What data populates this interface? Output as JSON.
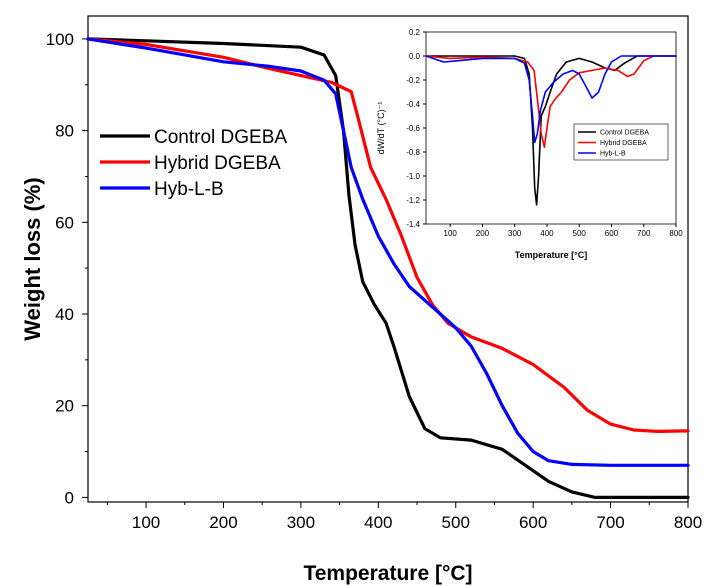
{
  "chart_data": [
    {
      "type": "line",
      "xlabel": "Temperature [°C]",
      "ylabel": "Weight loss (%)",
      "xlim": [
        25,
        800
      ],
      "ylim": [
        -1,
        105
      ],
      "xticks": [
        100,
        200,
        300,
        400,
        500,
        600,
        700,
        800
      ],
      "yticks": [
        0,
        20,
        40,
        60,
        80,
        100
      ],
      "grid": false,
      "legend_position": "center-left",
      "series": [
        {
          "name": "Control DGEBA",
          "color": "#000000",
          "points": [
            [
              25,
              100
            ],
            [
              100,
              99.6
            ],
            [
              200,
              99
            ],
            [
              300,
              98.2
            ],
            [
              330,
              96.5
            ],
            [
              345,
              92
            ],
            [
              355,
              80
            ],
            [
              362,
              66
            ],
            [
              370,
              55
            ],
            [
              380,
              47
            ],
            [
              395,
              42
            ],
            [
              410,
              38
            ],
            [
              420,
              33
            ],
            [
              440,
              22
            ],
            [
              460,
              15
            ],
            [
              480,
              13
            ],
            [
              520,
              12.5
            ],
            [
              560,
              10.5
            ],
            [
              590,
              7
            ],
            [
              620,
              3.5
            ],
            [
              650,
              1.2
            ],
            [
              680,
              0
            ],
            [
              800,
              0
            ]
          ]
        },
        {
          "name": "Hybrid DGEBA",
          "color": "#ff0000",
          "points": [
            [
              25,
              100
            ],
            [
              100,
              98.8
            ],
            [
              200,
              96
            ],
            [
              260,
              93.5
            ],
            [
              300,
              92
            ],
            [
              340,
              90.5
            ],
            [
              365,
              88.5
            ],
            [
              375,
              82
            ],
            [
              390,
              72
            ],
            [
              410,
              65
            ],
            [
              430,
              57
            ],
            [
              450,
              48
            ],
            [
              470,
              42
            ],
            [
              490,
              38
            ],
            [
              520,
              35
            ],
            [
              560,
              32.5
            ],
            [
              600,
              29
            ],
            [
              640,
              24
            ],
            [
              670,
              19
            ],
            [
              700,
              16
            ],
            [
              730,
              14.7
            ],
            [
              760,
              14.4
            ],
            [
              800,
              14.5
            ]
          ]
        },
        {
          "name": "Hyb-L-B",
          "color": "#0000ff",
          "points": [
            [
              25,
              100
            ],
            [
              100,
              98
            ],
            [
              200,
              95
            ],
            [
              260,
              94
            ],
            [
              300,
              93
            ],
            [
              330,
              91
            ],
            [
              345,
              88
            ],
            [
              355,
              80
            ],
            [
              365,
              72
            ],
            [
              380,
              65
            ],
            [
              400,
              57
            ],
            [
              420,
              51
            ],
            [
              440,
              46
            ],
            [
              460,
              43
            ],
            [
              480,
              40
            ],
            [
              500,
              37
            ],
            [
              520,
              33
            ],
            [
              540,
              27
            ],
            [
              560,
              20
            ],
            [
              580,
              14
            ],
            [
              600,
              10
            ],
            [
              620,
              8
            ],
            [
              650,
              7.2
            ],
            [
              700,
              7
            ],
            [
              800,
              7
            ]
          ]
        }
      ]
    },
    {
      "type": "line",
      "xlabel": "Temperature [°C]",
      "ylabel": "dW/dT (°C)⁻¹",
      "xlim": [
        25,
        800
      ],
      "ylim": [
        -1.4,
        0.2
      ],
      "xticks": [
        100,
        200,
        300,
        400,
        500,
        600,
        700,
        800
      ],
      "yticks": [
        0.2,
        0.0,
        -0.2,
        -0.4,
        -0.6,
        -0.8,
        -1.0,
        -1.2,
        -1.4
      ],
      "tick_labels_y": [
        "0.2",
        "0.0",
        "-0.2",
        "-0.4",
        "-0.6",
        "-0.8",
        "-1.0",
        "-1.2",
        "-1.4"
      ],
      "grid": false,
      "legend_position": "lower-right",
      "series": [
        {
          "name": "Control DGEBA",
          "color": "#000000",
          "points": [
            [
              25,
              0
            ],
            [
              300,
              0
            ],
            [
              330,
              -0.02
            ],
            [
              345,
              -0.15
            ],
            [
              355,
              -0.6
            ],
            [
              362,
              -1.1
            ],
            [
              368,
              -1.24
            ],
            [
              374,
              -1.0
            ],
            [
              382,
              -0.5
            ],
            [
              395,
              -0.42
            ],
            [
              410,
              -0.3
            ],
            [
              430,
              -0.15
            ],
            [
              460,
              -0.05
            ],
            [
              500,
              -0.02
            ],
            [
              540,
              -0.05
            ],
            [
              580,
              -0.1
            ],
            [
              610,
              -0.12
            ],
            [
              640,
              -0.06
            ],
            [
              680,
              0
            ],
            [
              800,
              0
            ]
          ]
        },
        {
          "name": "Hybrid DGEBA",
          "color": "#ff0000",
          "points": [
            [
              25,
              0
            ],
            [
              100,
              -0.02
            ],
            [
              200,
              -0.01
            ],
            [
              300,
              -0.02
            ],
            [
              340,
              -0.05
            ],
            [
              360,
              -0.12
            ],
            [
              372,
              -0.4
            ],
            [
              382,
              -0.65
            ],
            [
              392,
              -0.76
            ],
            [
              400,
              -0.6
            ],
            [
              410,
              -0.42
            ],
            [
              425,
              -0.36
            ],
            [
              445,
              -0.3
            ],
            [
              470,
              -0.2
            ],
            [
              500,
              -0.14
            ],
            [
              540,
              -0.12
            ],
            [
              580,
              -0.1
            ],
            [
              620,
              -0.12
            ],
            [
              650,
              -0.17
            ],
            [
              670,
              -0.15
            ],
            [
              700,
              -0.04
            ],
            [
              730,
              0
            ],
            [
              800,
              0
            ]
          ]
        },
        {
          "name": "Hyb-L-B",
          "color": "#0000ff",
          "points": [
            [
              25,
              0
            ],
            [
              80,
              -0.05
            ],
            [
              120,
              -0.04
            ],
            [
              200,
              -0.02
            ],
            [
              300,
              -0.02
            ],
            [
              330,
              -0.06
            ],
            [
              345,
              -0.2
            ],
            [
              355,
              -0.5
            ],
            [
              362,
              -0.72
            ],
            [
              370,
              -0.65
            ],
            [
              380,
              -0.45
            ],
            [
              395,
              -0.3
            ],
            [
              420,
              -0.22
            ],
            [
              450,
              -0.15
            ],
            [
              480,
              -0.12
            ],
            [
              500,
              -0.15
            ],
            [
              520,
              -0.25
            ],
            [
              540,
              -0.35
            ],
            [
              560,
              -0.3
            ],
            [
              580,
              -0.15
            ],
            [
              600,
              -0.05
            ],
            [
              630,
              0
            ],
            [
              800,
              0
            ]
          ]
        }
      ]
    }
  ]
}
